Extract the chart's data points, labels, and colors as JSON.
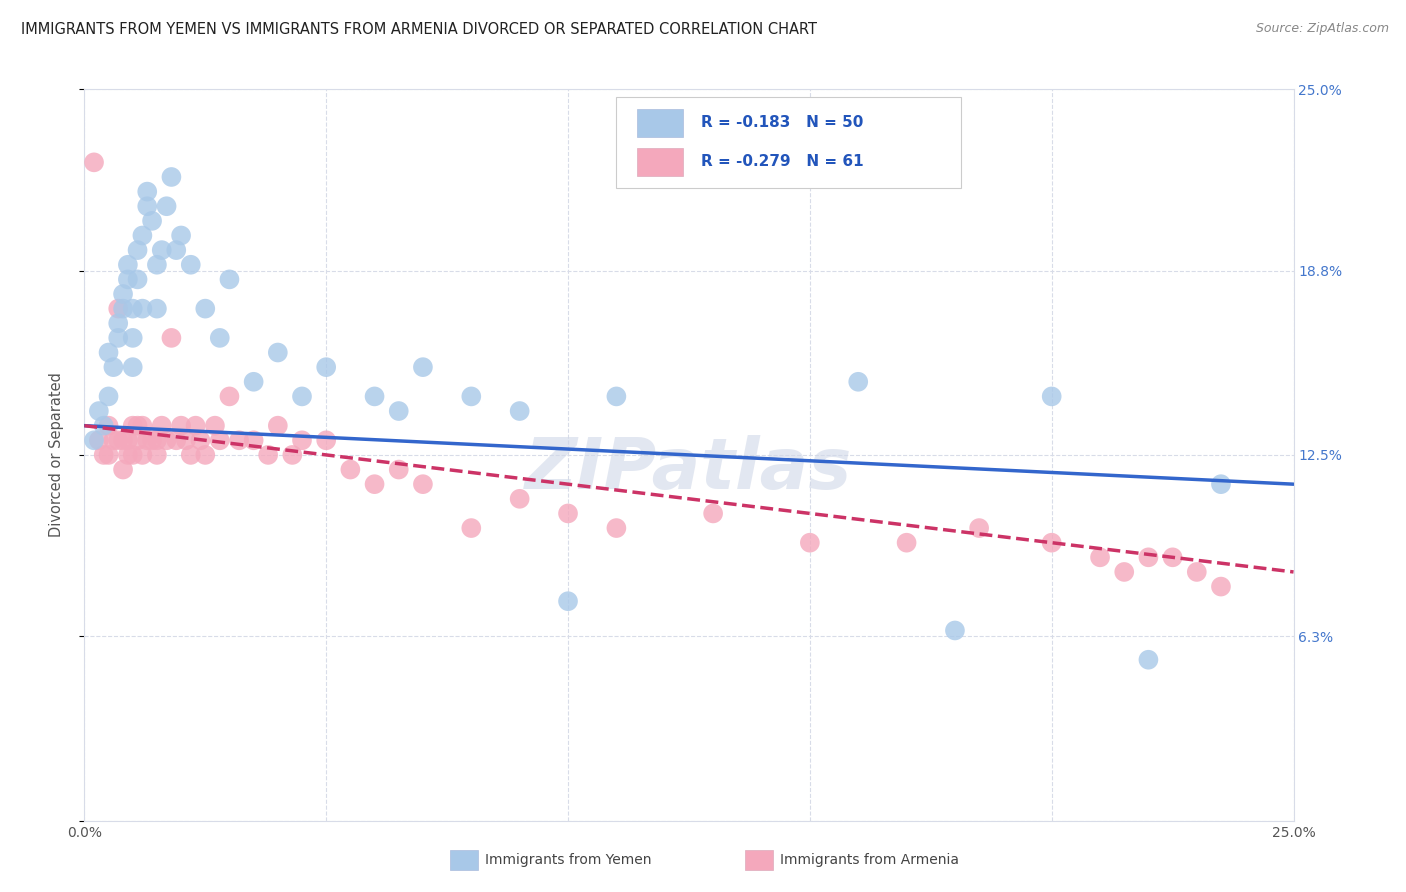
{
  "title": "IMMIGRANTS FROM YEMEN VS IMMIGRANTS FROM ARMENIA DIVORCED OR SEPARATED CORRELATION CHART",
  "source": "Source: ZipAtlas.com",
  "ylabel": "Divorced or Separated",
  "xlim": [
    0.0,
    0.25
  ],
  "ylim": [
    0.0,
    0.25
  ],
  "legend_label1": "Immigrants from Yemen",
  "legend_label2": "Immigrants from Armenia",
  "R1": -0.183,
  "N1": 50,
  "R2": -0.279,
  "N2": 61,
  "color_yemen": "#a8c8e8",
  "color_armenia": "#f4a8bc",
  "color_line_yemen": "#3366cc",
  "color_line_armenia": "#cc3366",
  "background_color": "#ffffff",
  "grid_color": "#d8dce8",
  "watermark": "ZIPatlas",
  "yemen_x": [
    0.002,
    0.003,
    0.004,
    0.005,
    0.005,
    0.006,
    0.007,
    0.007,
    0.008,
    0.008,
    0.009,
    0.009,
    0.01,
    0.01,
    0.01,
    0.011,
    0.011,
    0.012,
    0.012,
    0.013,
    0.013,
    0.014,
    0.015,
    0.015,
    0.016,
    0.017,
    0.018,
    0.019,
    0.02,
    0.022,
    0.025,
    0.028,
    0.03,
    0.035,
    0.04,
    0.045,
    0.05,
    0.06,
    0.065,
    0.07,
    0.08,
    0.09,
    0.1,
    0.11,
    0.13,
    0.16,
    0.18,
    0.2,
    0.22,
    0.235
  ],
  "yemen_y": [
    0.13,
    0.14,
    0.135,
    0.145,
    0.16,
    0.155,
    0.17,
    0.165,
    0.175,
    0.18,
    0.185,
    0.19,
    0.175,
    0.165,
    0.155,
    0.185,
    0.195,
    0.2,
    0.175,
    0.21,
    0.215,
    0.205,
    0.19,
    0.175,
    0.195,
    0.21,
    0.22,
    0.195,
    0.2,
    0.19,
    0.175,
    0.165,
    0.185,
    0.15,
    0.16,
    0.145,
    0.155,
    0.145,
    0.14,
    0.155,
    0.145,
    0.14,
    0.075,
    0.145,
    0.24,
    0.15,
    0.065,
    0.145,
    0.055,
    0.115
  ],
  "armenia_x": [
    0.002,
    0.003,
    0.004,
    0.005,
    0.005,
    0.006,
    0.007,
    0.007,
    0.008,
    0.008,
    0.009,
    0.009,
    0.01,
    0.01,
    0.011,
    0.011,
    0.012,
    0.012,
    0.013,
    0.014,
    0.015,
    0.015,
    0.016,
    0.017,
    0.018,
    0.019,
    0.02,
    0.021,
    0.022,
    0.023,
    0.024,
    0.025,
    0.027,
    0.028,
    0.03,
    0.032,
    0.035,
    0.038,
    0.04,
    0.043,
    0.045,
    0.05,
    0.055,
    0.06,
    0.065,
    0.07,
    0.08,
    0.09,
    0.1,
    0.11,
    0.13,
    0.15,
    0.17,
    0.185,
    0.2,
    0.21,
    0.215,
    0.22,
    0.225,
    0.23,
    0.235
  ],
  "armenia_y": [
    0.225,
    0.13,
    0.125,
    0.135,
    0.125,
    0.13,
    0.175,
    0.13,
    0.13,
    0.12,
    0.13,
    0.125,
    0.135,
    0.125,
    0.135,
    0.13,
    0.135,
    0.125,
    0.13,
    0.13,
    0.13,
    0.125,
    0.135,
    0.13,
    0.165,
    0.13,
    0.135,
    0.13,
    0.125,
    0.135,
    0.13,
    0.125,
    0.135,
    0.13,
    0.145,
    0.13,
    0.13,
    0.125,
    0.135,
    0.125,
    0.13,
    0.13,
    0.12,
    0.115,
    0.12,
    0.115,
    0.1,
    0.11,
    0.105,
    0.1,
    0.105,
    0.095,
    0.095,
    0.1,
    0.095,
    0.09,
    0.085,
    0.09,
    0.09,
    0.085,
    0.08
  ]
}
